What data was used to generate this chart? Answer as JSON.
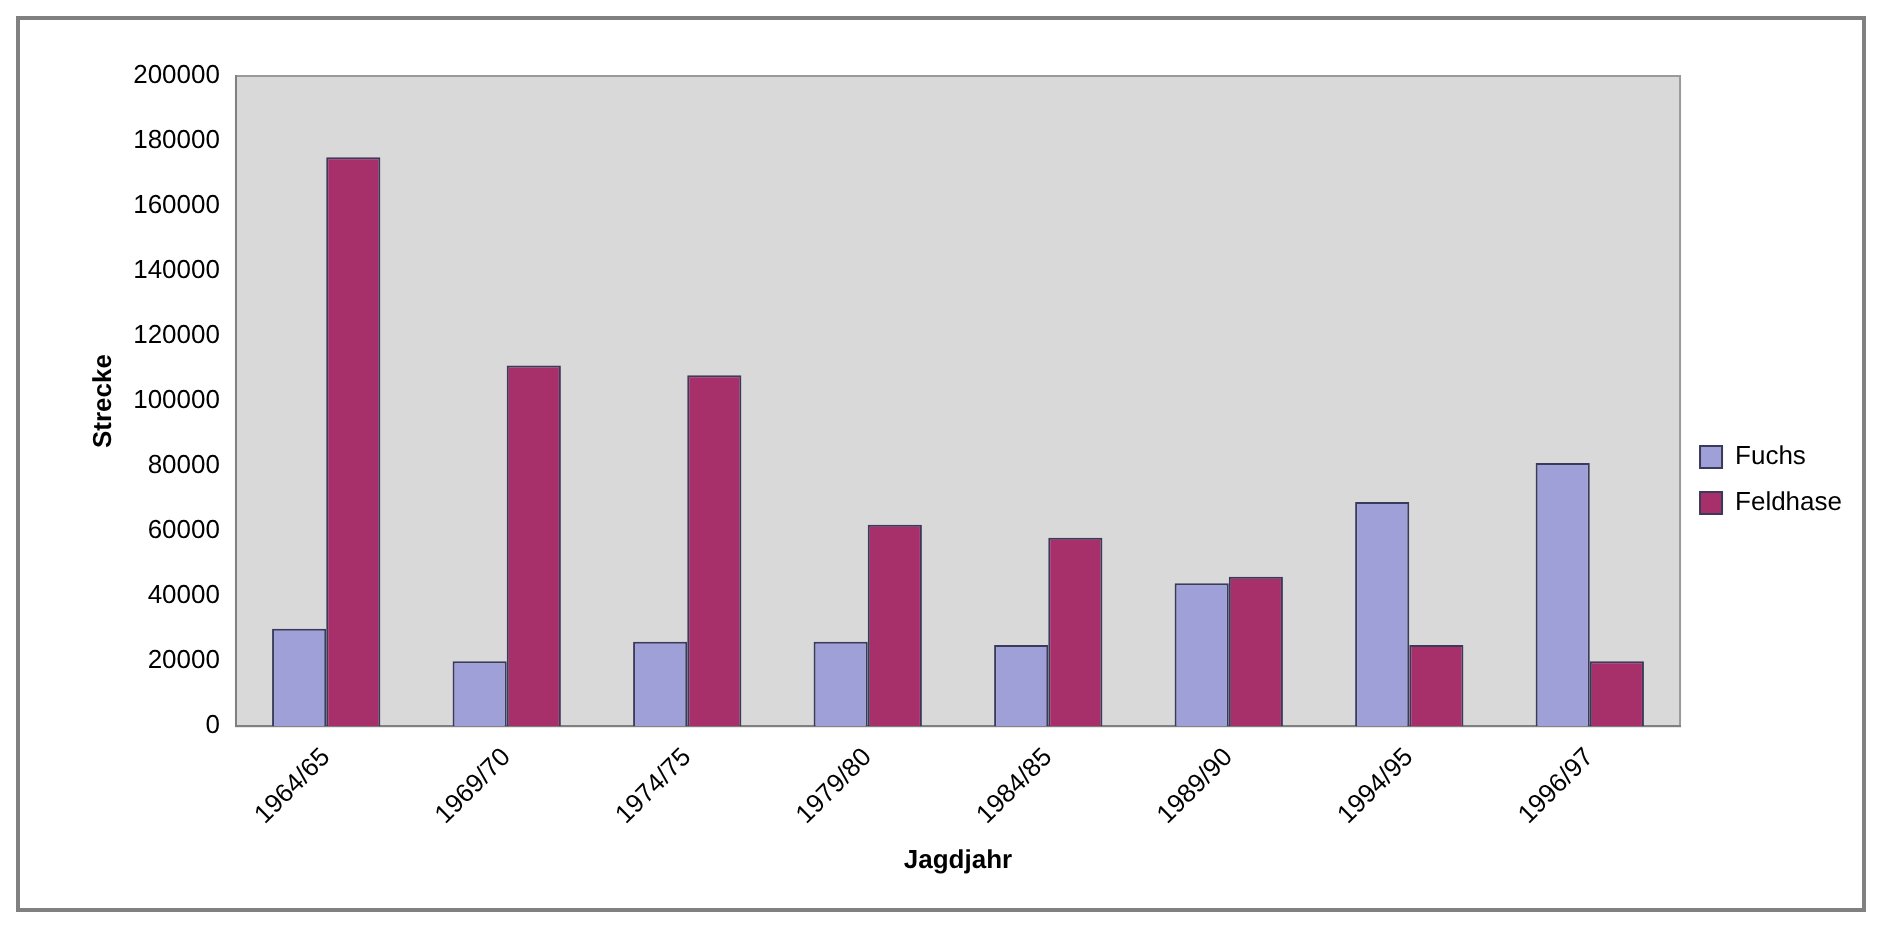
{
  "chart_data": {
    "type": "bar",
    "xlabel": "Jagdjahr",
    "ylabel": "Strecke",
    "categories": [
      "1964/65",
      "1969/70",
      "1974/75",
      "1979/80",
      "1984/85",
      "1989/90",
      "1994/95",
      "1996/97"
    ],
    "series": [
      {
        "name": "Fuchs",
        "color": "#a0a0d8",
        "values": [
          30000,
          20000,
          26000,
          26000,
          25000,
          44000,
          69000,
          81000
        ]
      },
      {
        "name": "Feldhase",
        "color": "#a8306a",
        "values": [
          175000,
          111000,
          108000,
          62000,
          58000,
          46000,
          25000,
          20000
        ]
      }
    ],
    "ylim": [
      0,
      200000
    ],
    "yticks": [
      0,
      20000,
      40000,
      60000,
      80000,
      100000,
      120000,
      140000,
      160000,
      180000,
      200000
    ],
    "grid": false,
    "legend": "right"
  }
}
